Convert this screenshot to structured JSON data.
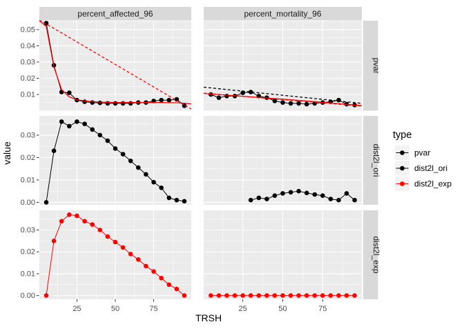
{
  "figure": {
    "background": "#FFFFFF",
    "panel_bg": "#EBEBEB",
    "strip_bg": "#D9D9D9",
    "grid_color": "#FFFFFF",
    "tick_color": "#333333",
    "tick_label_color": "#4D4D4D",
    "strip_text_color": "#1A1A1A",
    "axis_title_color": "#000000",
    "black_series_color": "#000000",
    "red_series_color": "#FF0000",
    "legend_key_bg": "#F2F2F2"
  },
  "chart_data": {
    "type": "line",
    "title": "",
    "xlabel": "TRSH",
    "ylabel": "value",
    "grid": true,
    "legend_position": "right",
    "facet_columns": [
      "percent_affected_96",
      "percent_mortality_96"
    ],
    "facet_rows": [
      "pvar",
      "dist2l_ori",
      "dist2l_exp"
    ],
    "x_range": [
      0.5,
      99.5
    ],
    "x_ticks": [
      25,
      50,
      75
    ],
    "x_minor": [
      12.5,
      37.5,
      62.5,
      87.5
    ],
    "rows": [
      {
        "name": "pvar",
        "y_range": [
          0.0,
          0.0555
        ],
        "y_ticks": [
          0.01,
          0.02,
          0.03,
          0.04,
          0.05
        ],
        "y_minor": [
          0.005,
          0.015,
          0.025,
          0.035,
          0.045,
          0.055
        ]
      },
      {
        "name": "dist2l_ori",
        "y_range": [
          -0.0011,
          0.0386
        ],
        "y_ticks": [
          0.0,
          0.01,
          0.02,
          0.03
        ],
        "y_minor": [
          0.005,
          0.015,
          0.025,
          0.035
        ]
      },
      {
        "name": "dist2l_exp",
        "y_range": [
          -0.0017,
          0.039
        ],
        "y_ticks": [
          0.0,
          0.01,
          0.02,
          0.03
        ],
        "y_minor": [
          0.005,
          0.015,
          0.025,
          0.035
        ]
      }
    ],
    "panels": [
      {
        "row": "pvar",
        "col": "percent_affected_96",
        "series": [
          {
            "name": "pvar-data",
            "color": "#000000",
            "dash": "none",
            "points": true,
            "x": [
              5,
              10,
              15,
              20,
              25,
              30,
              35,
              40,
              45,
              50,
              55,
              60,
              65,
              70,
              75,
              80,
              85,
              90,
              95
            ],
            "y": [
              0.054,
              0.028,
              0.0115,
              0.011,
              0.0065,
              0.0055,
              0.005,
              0.0048,
              0.0045,
              0.0045,
              0.0045,
              0.0045,
              0.005,
              0.005,
              0.006,
              0.0065,
              0.0065,
              0.007,
              0.003
            ]
          },
          {
            "name": "dist2l-ori-fit",
            "color": "#FF0000",
            "dash": "dashed",
            "points": false,
            "x": [
              0.5,
              99.5
            ],
            "y": [
              0.056,
              0.001
            ]
          },
          {
            "name": "dist2l-exp-fit",
            "color": "#FF0000",
            "dash": "none",
            "points": false,
            "x": [
              0.5,
              5,
              10,
              15,
              20,
              25,
              30,
              40,
              50,
              60,
              70,
              80,
              90,
              95,
              99.5
            ],
            "y": [
              0.0555,
              0.052,
              0.027,
              0.013,
              0.0085,
              0.0068,
              0.006,
              0.0053,
              0.005,
              0.005,
              0.005,
              0.005,
              0.0049,
              0.0046,
              0.0042
            ]
          }
        ]
      },
      {
        "row": "pvar",
        "col": "percent_mortality_96",
        "series": [
          {
            "name": "pvar-data",
            "color": "#000000",
            "dash": "none",
            "points": true,
            "x": [
              5,
              10,
              15,
              20,
              25,
              30,
              35,
              40,
              45,
              50,
              55,
              60,
              65,
              70,
              75,
              80,
              85,
              90,
              95
            ],
            "y": [
              0.01,
              0.008,
              0.009,
              0.009,
              0.011,
              0.0115,
              0.009,
              0.008,
              0.006,
              0.005,
              0.0045,
              0.0045,
              0.004,
              0.0045,
              0.005,
              0.0055,
              0.0065,
              0.004,
              0.0035
            ]
          },
          {
            "name": "pvar-linear-fit",
            "color": "#000000",
            "dash": "dashed",
            "points": false,
            "x": [
              0.5,
              99.5
            ],
            "y": [
              0.0145,
              0.0045
            ]
          },
          {
            "name": "dist2l-ori-fit",
            "color": "#FF0000",
            "dash": "dashed",
            "points": false,
            "x": [
              0.5,
              99.5
            ],
            "y": [
              0.0108,
              0.0028
            ]
          },
          {
            "name": "dist2l-exp-fit",
            "color": "#FF0000",
            "dash": "none",
            "points": false,
            "x": [
              0.5,
              25,
              50,
              75,
              99.5
            ],
            "y": [
              0.0106,
              0.0089,
              0.0071,
              0.0052,
              0.0031
            ]
          }
        ]
      },
      {
        "row": "dist2l_ori",
        "col": "percent_affected_96",
        "series": [
          {
            "name": "dist2l-ori-data",
            "color": "#000000",
            "dash": "none",
            "points": true,
            "x": [
              5,
              10,
              15,
              20,
              25,
              30,
              35,
              40,
              45,
              50,
              55,
              60,
              65,
              70,
              75,
              80,
              85,
              90,
              95
            ],
            "y": [
              0.0,
              0.023,
              0.036,
              0.034,
              0.036,
              0.035,
              0.0325,
              0.03,
              0.0275,
              0.024,
              0.0215,
              0.0185,
              0.0155,
              0.0125,
              0.009,
              0.0065,
              0.002,
              0.001,
              0.0005
            ]
          }
        ]
      },
      {
        "row": "dist2l_ori",
        "col": "percent_mortality_96",
        "series": [
          {
            "name": "dist2l-ori-data",
            "color": "#000000",
            "dash": "none",
            "points": true,
            "x": [
              30,
              35,
              40,
              45,
              50,
              55,
              60,
              65,
              70,
              75,
              80,
              85,
              90,
              95
            ],
            "y": [
              0.001,
              0.002,
              0.0015,
              0.003,
              0.004,
              0.0045,
              0.005,
              0.0042,
              0.0035,
              0.003,
              0.0015,
              0.001,
              0.004,
              0.001
            ]
          }
        ]
      },
      {
        "row": "dist2l_exp",
        "col": "percent_affected_96",
        "series": [
          {
            "name": "dist2l-exp-data",
            "color": "#FF0000",
            "dash": "none",
            "points": true,
            "x": [
              5,
              10,
              15,
              20,
              25,
              30,
              35,
              40,
              45,
              50,
              55,
              60,
              65,
              70,
              75,
              80,
              85,
              90,
              95
            ],
            "y": [
              0.0,
              0.025,
              0.034,
              0.037,
              0.0365,
              0.034,
              0.0325,
              0.03,
              0.027,
              0.0245,
              0.022,
              0.019,
              0.0165,
              0.0135,
              0.011,
              0.008,
              0.005,
              0.003,
              0.0
            ]
          }
        ]
      },
      {
        "row": "dist2l_exp",
        "col": "percent_mortality_96",
        "series": [
          {
            "name": "dist2l-exp-data",
            "color": "#FF0000",
            "dash": "none",
            "points": true,
            "x": [
              5,
              10,
              15,
              20,
              25,
              30,
              35,
              40,
              45,
              50,
              55,
              60,
              65,
              70,
              75,
              80,
              85,
              90,
              95
            ],
            "y": [
              0,
              0,
              0,
              0,
              0,
              0,
              0,
              0,
              0,
              0,
              0,
              0,
              0,
              0,
              0,
              0,
              0,
              0,
              0
            ]
          }
        ]
      }
    ],
    "legend": {
      "title": "type",
      "entries": [
        {
          "label": "pvar",
          "color": "#000000"
        },
        {
          "label": "dist2l_ori",
          "color": "#000000"
        },
        {
          "label": "dist2l_exp",
          "color": "#FF0000"
        }
      ]
    }
  }
}
